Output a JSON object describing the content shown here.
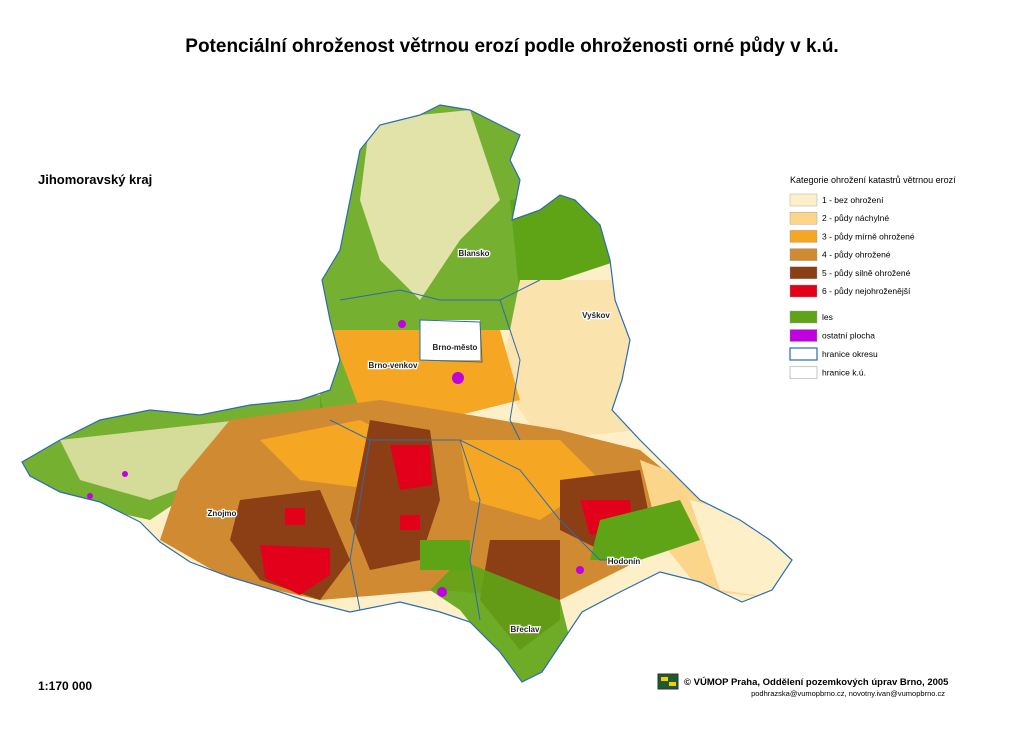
{
  "header": {
    "title": "Potenciální ohroženost větrnou erozí podle ohroženosti orné půdy v k.ú.",
    "region": "Jihomoravský kraj"
  },
  "map": {
    "districts": [
      "Blansko",
      "Vyškov",
      "Brno-město",
      "Brno-venkov",
      "Znojmo",
      "Hodonín",
      "Břeclav"
    ]
  },
  "legend": {
    "title": "Kategorie ohrožení katastrů větrnou erozí",
    "items": [
      {
        "label": "1 - bez ohrožení",
        "color": "#fdf0c8"
      },
      {
        "label": "2 - půdy náchylné",
        "color": "#fbd58a"
      },
      {
        "label": "3 - půdy mírně ohrožené",
        "color": "#f5a623"
      },
      {
        "label": "4 - půdy ohrožené",
        "color": "#d08a32"
      },
      {
        "label": "5 - půdy silně ohrožené",
        "color": "#8c3f14"
      },
      {
        "label": "6 - půdy nejohroženější",
        "color": "#e3001b"
      }
    ],
    "extra": [
      {
        "label": "les",
        "color": "#5ea416"
      },
      {
        "label": "ostatní plocha",
        "color": "#c100e0"
      },
      {
        "label": "hranice okresu",
        "color": "#2b6cb0"
      },
      {
        "label": "hranice k.ú.",
        "color": "#cfcfcf"
      }
    ]
  },
  "footer": {
    "scale": "1:170 000",
    "credit": "©  VÚMOP Praha, Oddělení pozemkových úprav Brno, 2005",
    "emails": "podhrazska@vumopbrno.cz, novotny.ivan@vumopbrno.cz"
  }
}
